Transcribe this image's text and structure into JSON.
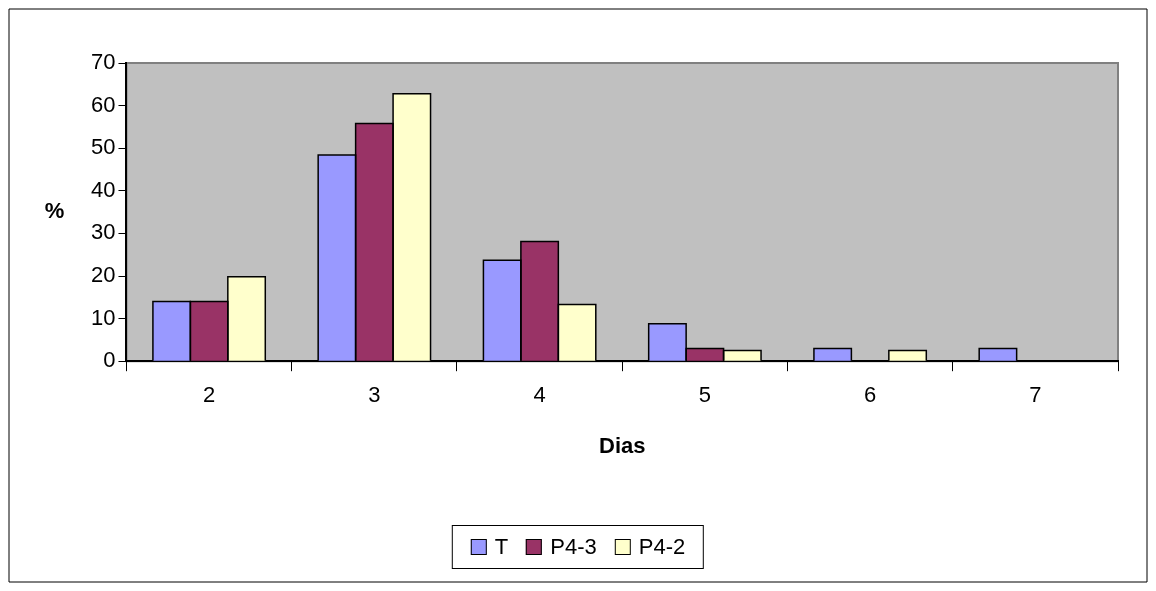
{
  "chart_data": {
    "type": "bar",
    "xlabel": "Dias",
    "ylabel": "%",
    "categories": [
      "2",
      "3",
      "4",
      "5",
      "6",
      "7"
    ],
    "series": [
      {
        "name": "T",
        "color": "#9999ff",
        "values": [
          14,
          48.4,
          23.7,
          8.8,
          3,
          3
        ]
      },
      {
        "name": "P4-3",
        "color": "#993366",
        "values": [
          14,
          55.8,
          28.1,
          3,
          0,
          0
        ]
      },
      {
        "name": "P4-2",
        "color": "#ffffcc",
        "values": [
          19.8,
          62.8,
          13.3,
          2.5,
          2.5,
          0
        ]
      }
    ],
    "ylim": [
      0,
      70
    ],
    "yticks": [
      0,
      10,
      20,
      30,
      40,
      50,
      60,
      70
    ],
    "grid": false,
    "legend": "bottom"
  }
}
